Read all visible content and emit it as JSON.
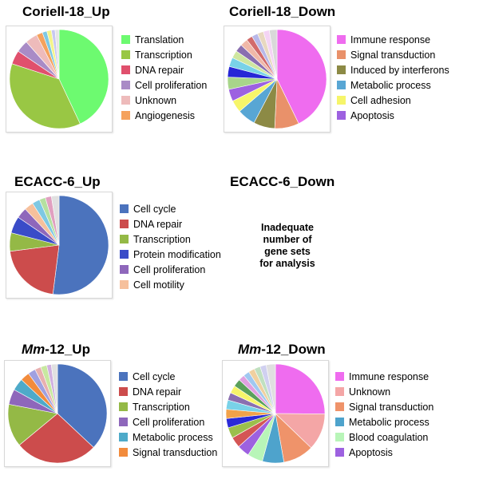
{
  "chart_data": [
    {
      "type": "pie",
      "title": "Coriell-18_Up",
      "legend": [
        {
          "label": "Translation",
          "color": "#6dfa70"
        },
        {
          "label": "Transcription",
          "color": "#99c744"
        },
        {
          "label": "DNA repair",
          "color": "#e0506d"
        },
        {
          "label": "Cell proliferation",
          "color": "#a98bc6"
        },
        {
          "label": "Unknown",
          "color": "#eebbbb"
        },
        {
          "label": "Angiogenesis",
          "color": "#f5a25d"
        }
      ],
      "slices": [
        {
          "value": 43,
          "color": "#6dfa70"
        },
        {
          "value": 37,
          "color": "#99c744"
        },
        {
          "value": 4.5,
          "color": "#e0506d"
        },
        {
          "value": 4,
          "color": "#a98bc6"
        },
        {
          "value": 4,
          "color": "#eebbbb"
        },
        {
          "value": 2,
          "color": "#f5a25d"
        },
        {
          "value": 1.5,
          "color": "#7ec8e3"
        },
        {
          "value": 1.5,
          "color": "#f4f48a"
        },
        {
          "value": 1.2,
          "color": "#c8c8f0"
        },
        {
          "value": 1.3,
          "color": "#e5e5e5"
        }
      ]
    },
    {
      "type": "pie",
      "title": "Coriell-18_Down",
      "legend": [
        {
          "label": "Immune response",
          "color": "#ef6cef"
        },
        {
          "label": "Signal transduction",
          "color": "#e9916a"
        },
        {
          "label": "Induced by interferons",
          "color": "#8c8a45"
        },
        {
          "label": "Metabolic process",
          "color": "#58a6d4"
        },
        {
          "label": "Cell adhesion",
          "color": "#f6f56a"
        },
        {
          "label": "Apoptosis",
          "color": "#9d61e0"
        }
      ],
      "slices": [
        {
          "value": 43,
          "color": "#ef6cef"
        },
        {
          "value": 8,
          "color": "#e9916a"
        },
        {
          "value": 7,
          "color": "#8c8a45"
        },
        {
          "value": 6,
          "color": "#58a6d4"
        },
        {
          "value": 4,
          "color": "#f6f56a"
        },
        {
          "value": 4,
          "color": "#9d61e0"
        },
        {
          "value": 4,
          "color": "#a8d58a"
        },
        {
          "value": 3.5,
          "color": "#2626d6"
        },
        {
          "value": 3,
          "color": "#79d2e8"
        },
        {
          "value": 2.5,
          "color": "#cfe7a0"
        },
        {
          "value": 2.5,
          "color": "#8a6fb0"
        },
        {
          "value": 2.5,
          "color": "#f0b8a8"
        },
        {
          "value": 2,
          "color": "#d26b6b"
        },
        {
          "value": 2,
          "color": "#b8b8e8"
        },
        {
          "value": 2,
          "color": "#e8d8c0"
        },
        {
          "value": 2,
          "color": "#f4d4f4"
        },
        {
          "value": 2.5,
          "color": "#d9d9d9"
        }
      ]
    },
    {
      "type": "pie",
      "title": "ECACC-6_Up",
      "legend": [
        {
          "label": "Cell cycle",
          "color": "#4b73bd"
        },
        {
          "label": "DNA repair",
          "color": "#cc4c4c"
        },
        {
          "label": "Transcription",
          "color": "#94b946"
        },
        {
          "label": "Protein modification",
          "color": "#3a4cc8"
        },
        {
          "label": "Cell proliferation",
          "color": "#8e67bb"
        },
        {
          "label": "Cell motility",
          "color": "#f6c09c"
        }
      ],
      "slices": [
        {
          "value": 52,
          "color": "#4b73bd"
        },
        {
          "value": 21,
          "color": "#cc4c4c"
        },
        {
          "value": 6,
          "color": "#94b946"
        },
        {
          "value": 5.5,
          "color": "#3a4cc8"
        },
        {
          "value": 3.5,
          "color": "#8e67bb"
        },
        {
          "value": 3,
          "color": "#f6c09c"
        },
        {
          "value": 2.5,
          "color": "#7ec8e3"
        },
        {
          "value": 2,
          "color": "#b5e0a0"
        },
        {
          "value": 2,
          "color": "#e0a0c0"
        },
        {
          "value": 2.5,
          "color": "#e0e0e0"
        }
      ],
      "message": ""
    },
    {
      "type": "pie",
      "title": "ECACC-6_Down",
      "legend": [],
      "slices": [],
      "message": [
        "Inadequate",
        "number of",
        "gene sets",
        "for analysis"
      ]
    },
    {
      "type": "pie",
      "title_italic": "Mm",
      "title_rest": "-12_Up",
      "legend": [
        {
          "label": "Cell cycle",
          "color": "#4b73bd"
        },
        {
          "label": "DNA repair",
          "color": "#cc4c4c"
        },
        {
          "label": "Transcription",
          "color": "#94b946"
        },
        {
          "label": "Cell proliferation",
          "color": "#8e67bb"
        },
        {
          "label": "Metabolic process",
          "color": "#4eaac9"
        },
        {
          "label": "Signal transduction",
          "color": "#f28b3c"
        }
      ],
      "slices": [
        {
          "value": 37,
          "color": "#4b73bd"
        },
        {
          "value": 27,
          "color": "#cc4c4c"
        },
        {
          "value": 14,
          "color": "#94b946"
        },
        {
          "value": 5,
          "color": "#8e67bb"
        },
        {
          "value": 4,
          "color": "#4eaac9"
        },
        {
          "value": 3,
          "color": "#f28b3c"
        },
        {
          "value": 2.5,
          "color": "#a0a0e0"
        },
        {
          "value": 2,
          "color": "#e8b0b0"
        },
        {
          "value": 2,
          "color": "#c8e8a0"
        },
        {
          "value": 1.5,
          "color": "#d0b0e0"
        },
        {
          "value": 2,
          "color": "#e0e0e0"
        }
      ]
    },
    {
      "type": "pie",
      "title_italic": "Mm",
      "title_rest": "-12_Down",
      "legend": [
        {
          "label": "Immune response",
          "color": "#ef6cef"
        },
        {
          "label": "Unknown",
          "color": "#f4a6a6"
        },
        {
          "label": "Signal transduction",
          "color": "#ef936a"
        },
        {
          "label": "Metabolic process",
          "color": "#4ea3cc"
        },
        {
          "label": "Blood coagulation",
          "color": "#b8f5b8"
        },
        {
          "label": "Apoptosis",
          "color": "#9d61e0"
        }
      ],
      "slices": [
        {
          "value": 25,
          "color": "#ef6cef"
        },
        {
          "value": 12,
          "color": "#f4a6a6"
        },
        {
          "value": 10,
          "color": "#ef936a"
        },
        {
          "value": 7,
          "color": "#4ea3cc"
        },
        {
          "value": 5,
          "color": "#b8f5b8"
        },
        {
          "value": 4,
          "color": "#9d61e0"
        },
        {
          "value": 3.5,
          "color": "#d45555"
        },
        {
          "value": 3.5,
          "color": "#9bbf4c"
        },
        {
          "value": 3,
          "color": "#2a2ad8"
        },
        {
          "value": 3,
          "color": "#f2a24a"
        },
        {
          "value": 3,
          "color": "#79d2e8"
        },
        {
          "value": 2.5,
          "color": "#8a6fb0"
        },
        {
          "value": 2.5,
          "color": "#f6f56a"
        },
        {
          "value": 2.5,
          "color": "#5aa05a"
        },
        {
          "value": 2,
          "color": "#e0a0e0"
        },
        {
          "value": 2,
          "color": "#a0c8f0"
        },
        {
          "value": 2,
          "color": "#f0d0a0"
        },
        {
          "value": 2,
          "color": "#c0e0c0"
        },
        {
          "value": 2,
          "color": "#d0d0f0"
        },
        {
          "value": 3,
          "color": "#e0e0e0"
        }
      ]
    }
  ]
}
